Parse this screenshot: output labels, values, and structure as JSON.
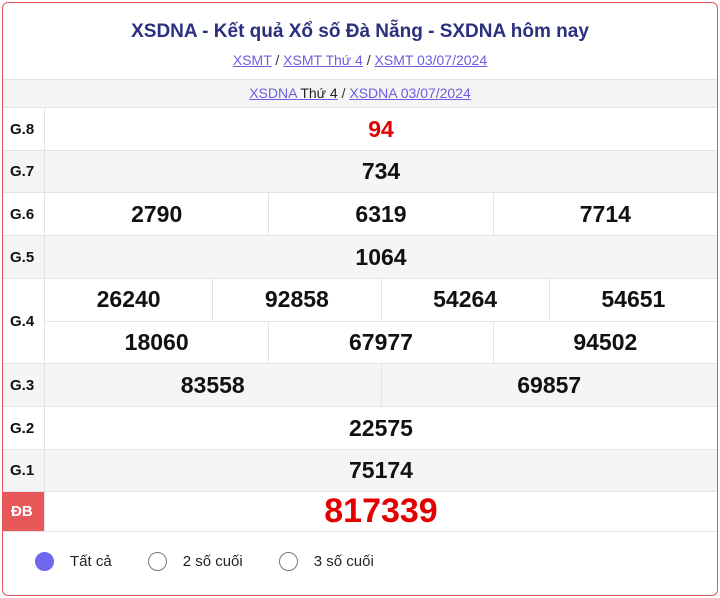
{
  "header": {
    "title": "XSDNA - Kết quả Xổ số Đà Nẵng - SXDNA hôm nay",
    "breadcrumbs": [
      "XSMT",
      "XSMT Thứ 4",
      "XSMT 03/07/2024"
    ]
  },
  "subnav": {
    "link1_prefix": "XSDNA",
    "link1_suffix": "Thứ 4",
    "link2": "XSDNA 03/07/2024"
  },
  "prizes": {
    "g8": {
      "label": "G.8",
      "values": [
        "94"
      ]
    },
    "g7": {
      "label": "G.7",
      "values": [
        "734"
      ]
    },
    "g6": {
      "label": "G.6",
      "values": [
        "2790",
        "6319",
        "7714"
      ]
    },
    "g5": {
      "label": "G.5",
      "values": [
        "1064"
      ]
    },
    "g4": {
      "label": "G.4",
      "values": [
        "26240",
        "92858",
        "54264",
        "54651",
        "18060",
        "67977",
        "94502"
      ]
    },
    "g3": {
      "label": "G.3",
      "values": [
        "83558",
        "69857"
      ]
    },
    "g2": {
      "label": "G.2",
      "values": [
        "22575"
      ]
    },
    "g1": {
      "label": "G.1",
      "values": [
        "75174"
      ]
    },
    "db": {
      "label": "ĐB",
      "values": [
        "817339"
      ]
    }
  },
  "filters": {
    "options": [
      "Tất cả",
      "2 số cuối",
      "3 số cuối"
    ],
    "selected": "Tất cả"
  },
  "colors": {
    "accent": "#6f66ee",
    "special": "#e40000",
    "title": "#2b2f7f",
    "border": "#e8575a"
  }
}
